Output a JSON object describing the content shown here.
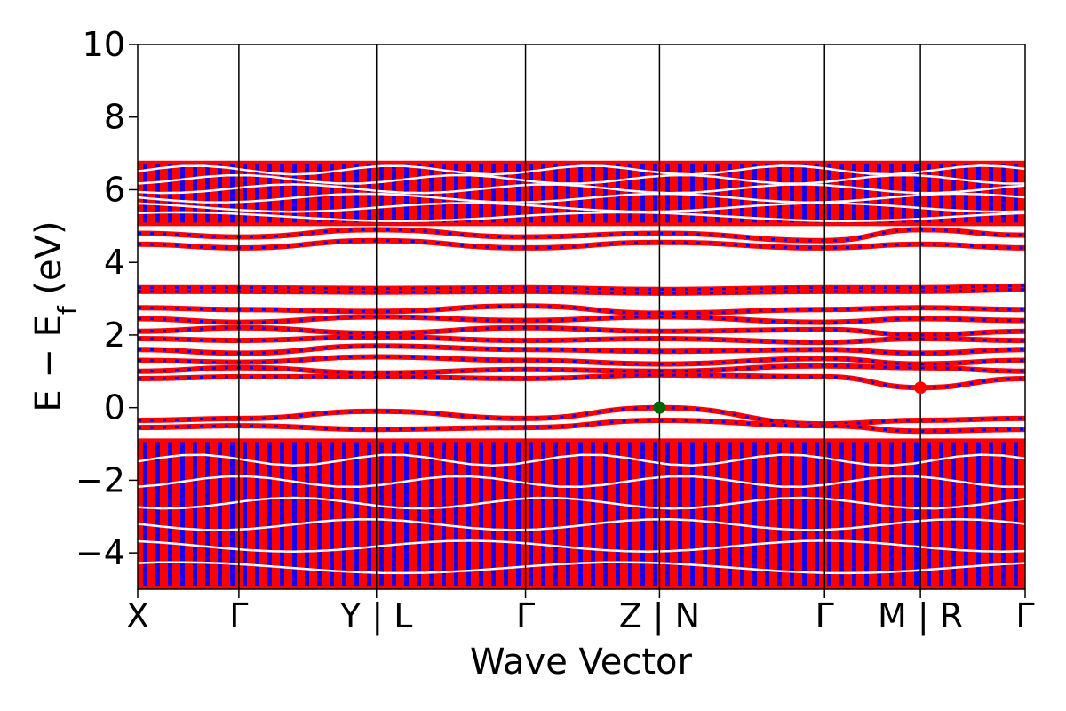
{
  "chart_data": {
    "type": "line",
    "title": "",
    "xlabel": "Wave Vector",
    "ylabel": "E − E_f (eV)",
    "ylabel_parts": {
      "main": "E − E",
      "sub": "f",
      "unit": " (eV)"
    },
    "ylim": [
      -5,
      10
    ],
    "yticks": [
      10,
      8,
      6,
      4,
      2,
      0,
      -2,
      -4
    ],
    "ytick_labels": [
      "10",
      "8",
      "6",
      "4",
      "2",
      "0",
      "−2",
      "−4"
    ],
    "kpath_labels": [
      "X",
      "Γ",
      "Y | L",
      "Γ",
      "Z | N",
      "Γ",
      "M | R",
      "Γ"
    ],
    "kpath_positions": [
      0,
      0.114,
      0.269,
      0.437,
      0.588,
      0.774,
      0.882,
      1.0
    ],
    "series_colors": {
      "spin_up": "#ff0000",
      "spin_down": "#0000ff"
    },
    "conduction_band_min": {
      "k": 0.882,
      "energy": 0.55,
      "color": "#ff0000"
    },
    "valence_band_max": {
      "k": 0.588,
      "energy": 0.0,
      "color": "#006400"
    },
    "bands": [
      {
        "name": "vb-dense",
        "energy_range": [
          -5.0,
          -0.85
        ],
        "curve_amplitude": 0.15
      },
      {
        "name": "vb-top-1",
        "values_at_labels": [
          -0.35,
          -0.3,
          -0.1,
          -0.3,
          0.0,
          -0.45,
          -0.35,
          -0.3
        ]
      },
      {
        "name": "vb-top-2",
        "values_at_labels": [
          -0.55,
          -0.5,
          -0.6,
          -0.55,
          -0.35,
          -0.5,
          -0.65,
          -0.6
        ]
      },
      {
        "name": "cb-1",
        "values_at_labels": [
          0.8,
          0.85,
          0.85,
          0.8,
          0.9,
          0.85,
          0.55,
          0.8
        ]
      },
      {
        "name": "cb-2",
        "values_at_labels": [
          1.0,
          1.1,
          0.95,
          1.05,
          1.0,
          1.15,
          1.1,
          1.0
        ]
      },
      {
        "name": "cb-3",
        "values_at_labels": [
          1.3,
          1.25,
          1.4,
          1.3,
          1.2,
          1.35,
          1.2,
          1.3
        ]
      },
      {
        "name": "cb-4",
        "values_at_labels": [
          1.6,
          1.5,
          1.7,
          1.6,
          1.55,
          1.6,
          1.5,
          1.6
        ]
      },
      {
        "name": "cb-5",
        "values_at_labels": [
          1.9,
          1.85,
          1.95,
          1.85,
          1.9,
          1.8,
          1.9,
          1.85
        ]
      },
      {
        "name": "cb-6",
        "values_at_labels": [
          2.1,
          2.2,
          2.05,
          2.2,
          2.1,
          2.15,
          2.0,
          2.1
        ]
      },
      {
        "name": "cb-7",
        "values_at_labels": [
          2.45,
          2.35,
          2.5,
          2.4,
          2.5,
          2.35,
          2.45,
          2.4
        ]
      },
      {
        "name": "cb-8",
        "values_at_labels": [
          2.75,
          2.7,
          2.65,
          2.8,
          2.6,
          2.7,
          2.75,
          2.7
        ]
      },
      {
        "name": "cb-9",
        "values_at_labels": [
          3.3,
          3.3,
          3.28,
          3.3,
          3.25,
          3.3,
          3.3,
          3.35
        ]
      },
      {
        "name": "cb-10",
        "values_at_labels": [
          3.2,
          3.2,
          3.18,
          3.2,
          3.15,
          3.2,
          3.2,
          3.25
        ]
      },
      {
        "name": "cb-11",
        "values_at_labels": [
          4.5,
          4.4,
          4.6,
          4.4,
          4.55,
          4.4,
          4.5,
          4.4
        ]
      },
      {
        "name": "cb-12",
        "values_at_labels": [
          4.8,
          4.7,
          4.9,
          4.7,
          4.8,
          4.6,
          4.9,
          4.75
        ]
      },
      {
        "name": "cb-dense",
        "energy_range": [
          5.0,
          6.8
        ],
        "curve_amplitude": 0.12
      }
    ]
  }
}
